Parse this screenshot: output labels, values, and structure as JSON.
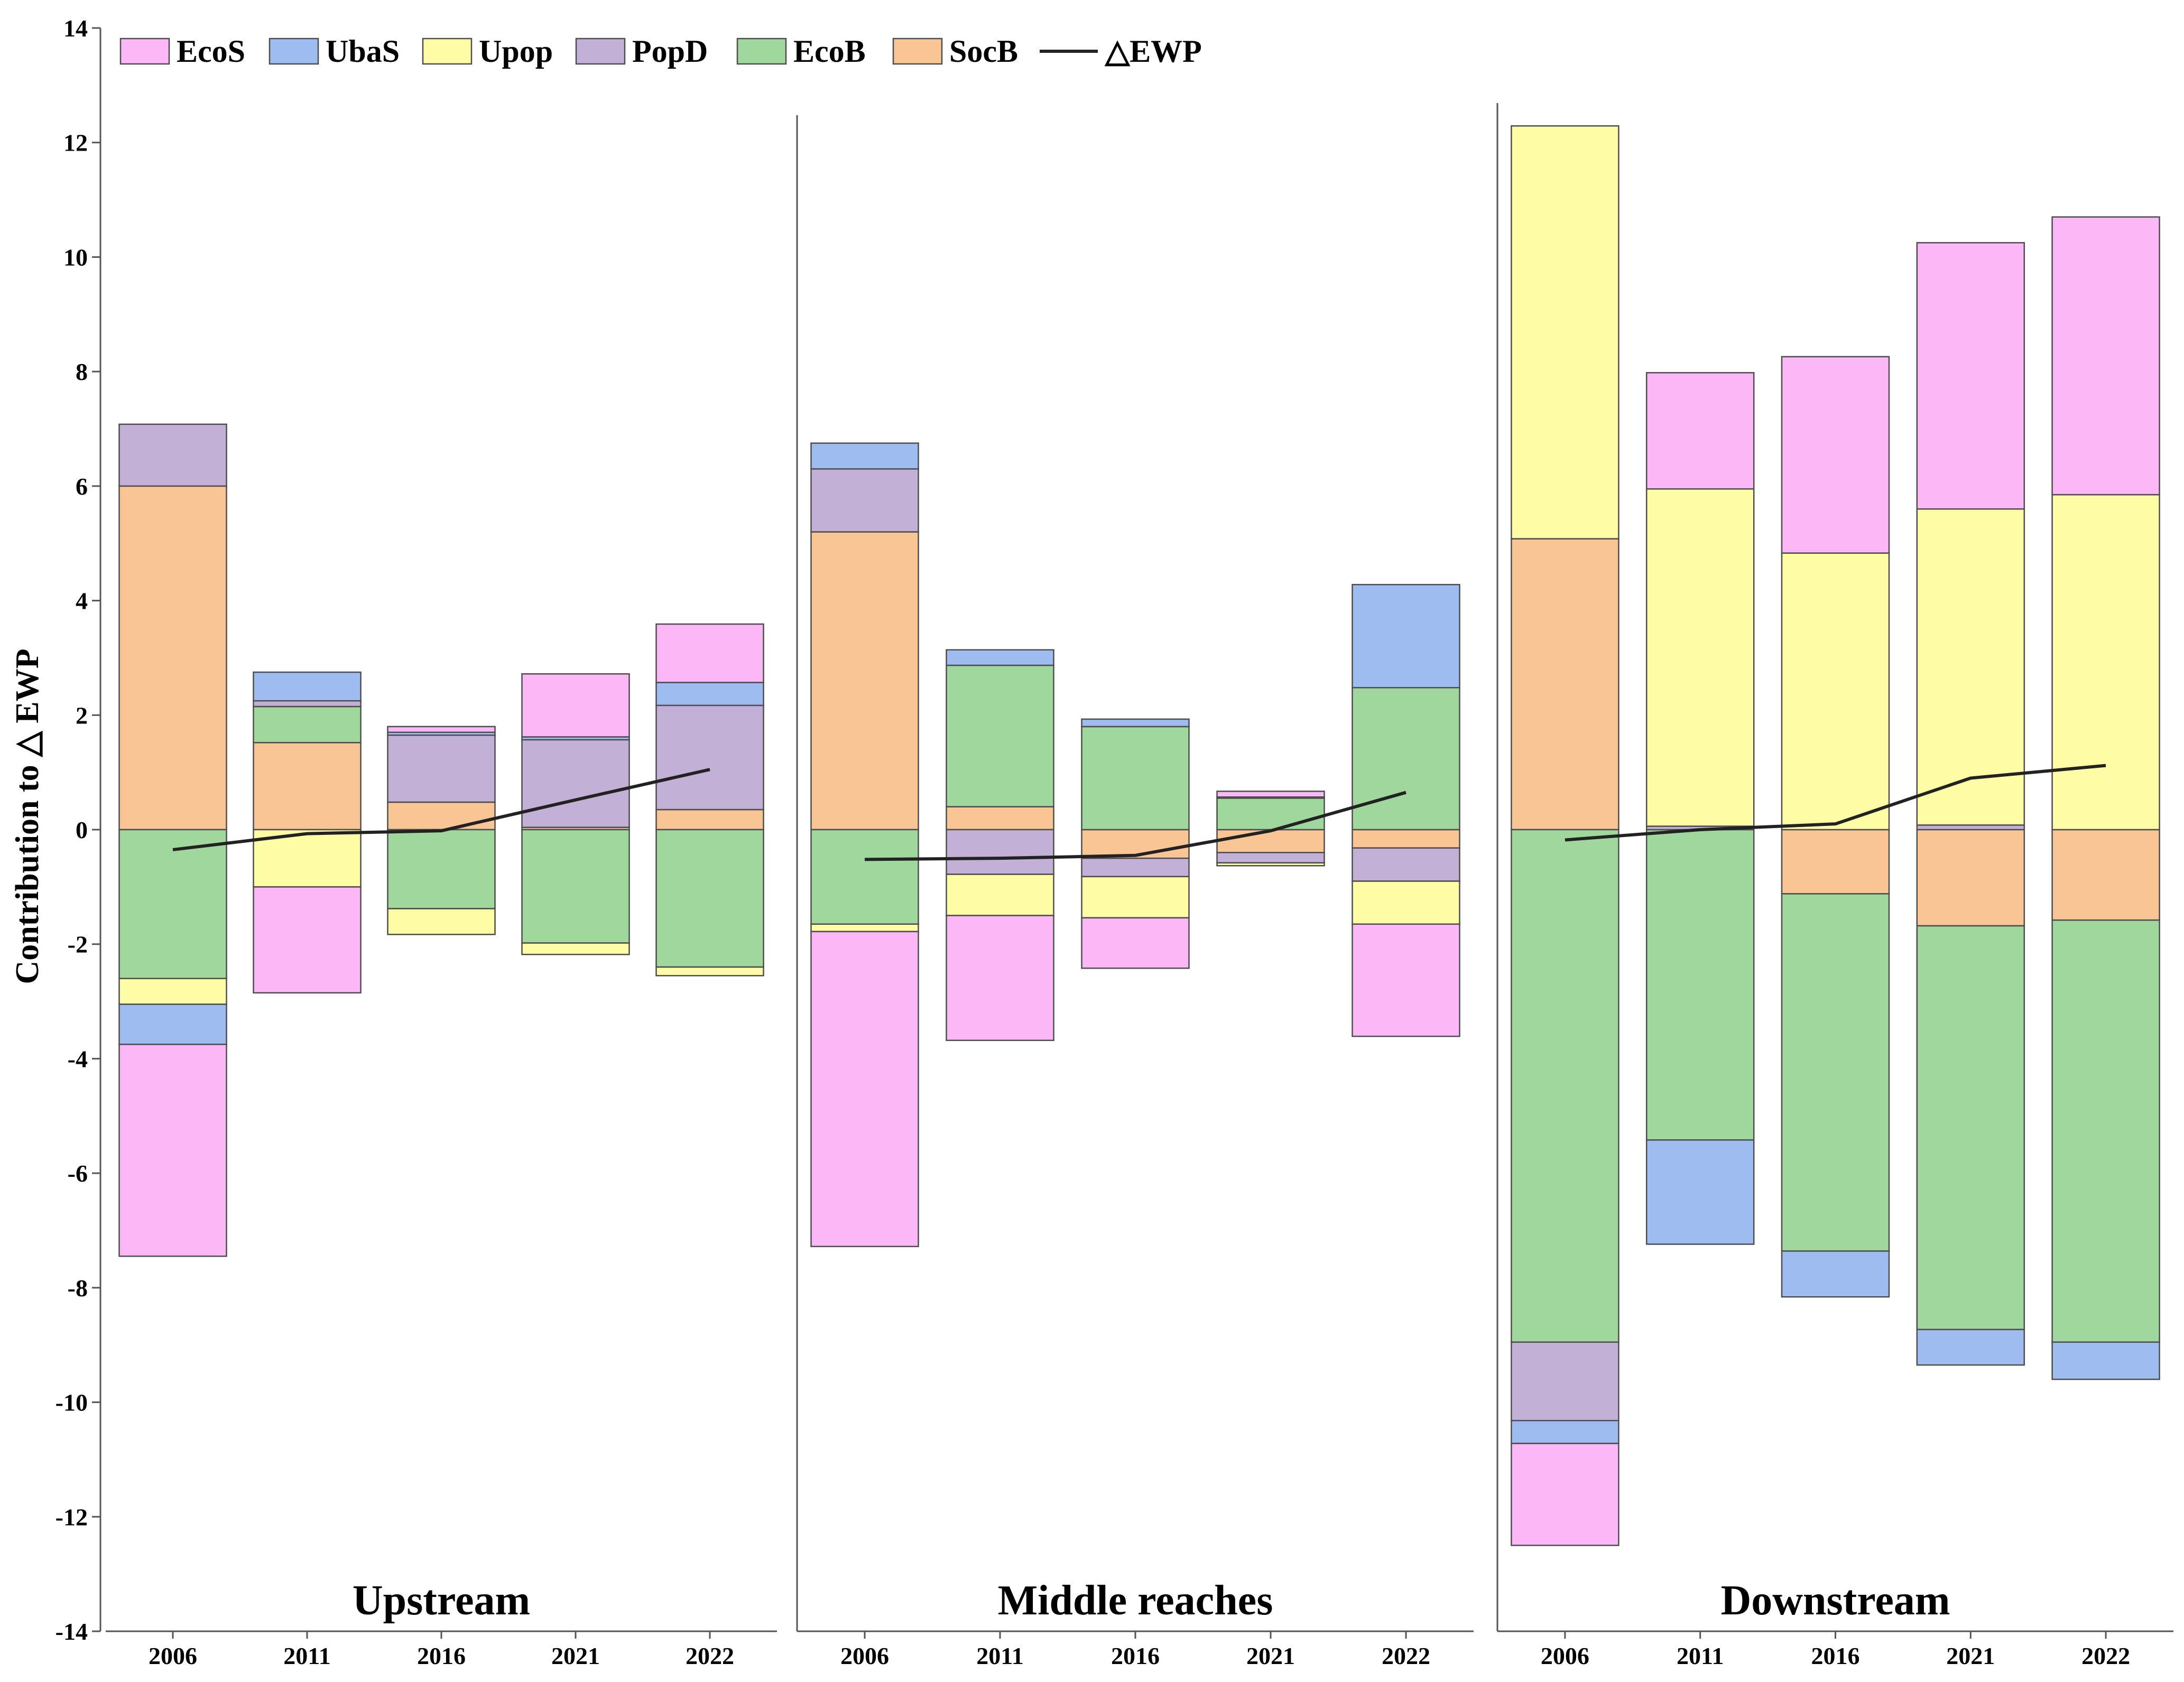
{
  "chart_data": {
    "type": "bar",
    "stacked": true,
    "ylabel": "Contribution to △ EWP",
    "ylim": [
      -14,
      14
    ],
    "yticks": [
      14,
      12,
      10,
      8,
      6,
      4,
      2,
      0,
      -2,
      -4,
      -6,
      -8,
      -10,
      -12,
      -14
    ],
    "categories": [
      "2006",
      "2011",
      "2016",
      "2021",
      "2022"
    ],
    "legend": {
      "placement": "top-left",
      "entries": [
        {
          "name": "EcoS",
          "color": "#fcb8f6",
          "kind": "bar"
        },
        {
          "name": "UbaS",
          "color": "#9fbcf1",
          "kind": "bar"
        },
        {
          "name": "Upop",
          "color": "#fefca4",
          "kind": "bar"
        },
        {
          "name": "PopD",
          "color": "#c3b0d6",
          "kind": "bar"
        },
        {
          "name": "EcoB",
          "color": "#9fd79d",
          "kind": "bar"
        },
        {
          "name": "SocB",
          "color": "#f9c595",
          "kind": "bar"
        },
        {
          "name": "△EWP",
          "color": "#222222",
          "kind": "line"
        }
      ]
    },
    "panels": [
      {
        "title": "Upstream",
        "series": [
          {
            "name": "SocB",
            "values": [
              6.0,
              1.52,
              0.48,
              0.04,
              0.35
            ]
          },
          {
            "name": "EcoB",
            "values": [
              -2.6,
              0.63,
              -1.38,
              -1.98,
              -2.4
            ]
          },
          {
            "name": "PopD",
            "values": [
              1.08,
              0.1,
              1.17,
              1.53,
              1.82
            ]
          },
          {
            "name": "Upop",
            "values": [
              -0.45,
              -1.0,
              -0.45,
              -0.2,
              -0.15
            ]
          },
          {
            "name": "UbaS",
            "values": [
              -0.7,
              0.5,
              0.05,
              0.05,
              0.4
            ]
          },
          {
            "name": "EcoS",
            "values": [
              -3.7,
              -1.85,
              0.1,
              1.1,
              1.02
            ]
          }
        ],
        "delta_ewp": [
          -0.35,
          -0.07,
          -0.02,
          0.52,
          1.05
        ]
      },
      {
        "title": "Middle reaches",
        "series": [
          {
            "name": "SocB",
            "values": [
              5.2,
              0.4,
              -0.5,
              -0.4,
              -0.32
            ]
          },
          {
            "name": "EcoB",
            "values": [
              -1.65,
              2.47,
              1.8,
              0.55,
              2.48
            ]
          },
          {
            "name": "PopD",
            "values": [
              1.1,
              -0.78,
              -0.32,
              -0.18,
              -0.58
            ]
          },
          {
            "name": "Upop",
            "values": [
              -0.13,
              -0.72,
              -0.72,
              -0.05,
              -0.75
            ]
          },
          {
            "name": "UbaS",
            "values": [
              0.45,
              0.27,
              0.13,
              0.02,
              1.8
            ]
          },
          {
            "name": "EcoS",
            "values": [
              -5.5,
              -2.18,
              -0.88,
              0.1,
              -1.96
            ]
          }
        ],
        "delta_ewp": [
          -0.52,
          -0.5,
          -0.45,
          -0.02,
          0.65
        ]
      },
      {
        "title": "Downstream",
        "series": [
          {
            "name": "SocB",
            "values": [
              5.08,
              0.0,
              -1.12,
              -1.68,
              -1.58
            ]
          },
          {
            "name": "EcoB",
            "values": [
              -8.95,
              -5.42,
              -6.24,
              -7.05,
              -7.37
            ]
          },
          {
            "name": "PopD",
            "values": [
              -1.37,
              0.06,
              0.0,
              0.08,
              0.0
            ]
          },
          {
            "name": "Upop",
            "values": [
              7.21,
              5.89,
              4.83,
              5.52,
              5.85
            ]
          },
          {
            "name": "UbaS",
            "values": [
              -0.4,
              -1.82,
              -0.8,
              -0.62,
              -0.65
            ]
          },
          {
            "name": "EcoS",
            "values": [
              -1.78,
              2.03,
              3.43,
              4.65,
              4.85
            ]
          }
        ],
        "delta_ewp": [
          -0.18,
          0.0,
          0.1,
          0.9,
          1.12
        ]
      }
    ]
  }
}
